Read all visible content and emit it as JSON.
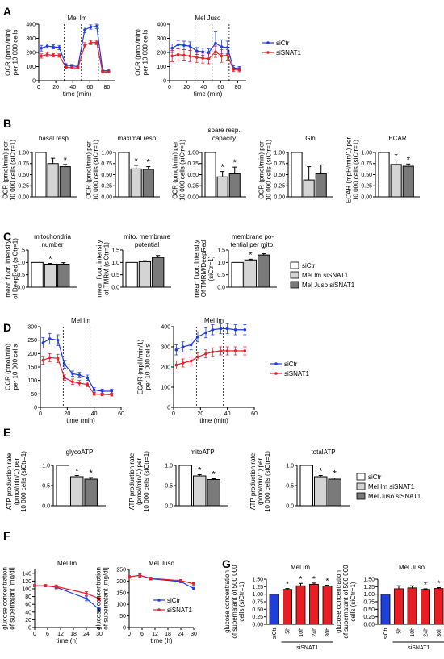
{
  "colors": {
    "blue": "#1f3de0",
    "red": "#e8202a",
    "bar_white": "#ffffff",
    "bar_light": "#d4d4d4",
    "bar_dark": "#7a7a7a",
    "g_blue": "#1e3fdc",
    "g_red": "#e81e24"
  },
  "panels": {
    "A": "A",
    "B": "B",
    "C": "C",
    "D": "D",
    "E": "E",
    "F": "F",
    "G": "G"
  },
  "legends": {
    "two": [
      "siCtr",
      "siSNAT1"
    ],
    "three": [
      "siCtr",
      "Mel Im siSNAT1",
      "Mel Juso siSNAT1"
    ]
  },
  "asterisk": "*",
  "chart_data": [
    {
      "id": "A1",
      "type": "line",
      "title": "Mel  Im",
      "xlabel": "time (min)",
      "ylabel": "OCR (pmol/min)\nper 10 000 cells",
      "xlim": [
        0,
        90
      ],
      "ylim": [
        0,
        400
      ],
      "xticks": [
        0,
        20,
        40,
        60,
        80
      ],
      "yticks": [
        0,
        100,
        200,
        300,
        400
      ],
      "vlines": [
        30,
        50,
        70
      ],
      "series": [
        {
          "name": "siCtr",
          "color": "blue",
          "x": [
            3,
            10,
            17,
            24,
            32,
            39,
            46,
            54,
            61,
            68,
            75,
            82
          ],
          "y": [
            230,
            245,
            240,
            235,
            110,
            105,
            100,
            360,
            380,
            385,
            70,
            70
          ],
          "err": [
            20,
            15,
            15,
            15,
            10,
            10,
            10,
            20,
            15,
            15,
            5,
            5
          ]
        },
        {
          "name": "siSNAT1",
          "color": "red",
          "x": [
            3,
            10,
            17,
            24,
            32,
            39,
            46,
            54,
            61,
            68,
            75,
            82
          ],
          "y": [
            175,
            185,
            180,
            178,
            95,
            92,
            90,
            250,
            270,
            270,
            60,
            62
          ],
          "err": [
            15,
            15,
            12,
            12,
            8,
            8,
            8,
            20,
            15,
            15,
            5,
            5
          ]
        }
      ]
    },
    {
      "id": "A2",
      "type": "line",
      "title": "Mel  Juso",
      "xlabel": "time (min)",
      "ylabel": "OCR (pmol/min)\nper 10 000 cells",
      "xlim": [
        0,
        90
      ],
      "ylim": [
        0,
        400
      ],
      "xticks": [
        0,
        20,
        40,
        60,
        80
      ],
      "yticks": [
        0,
        100,
        200,
        300,
        400
      ],
      "vlines": [
        30,
        50,
        70
      ],
      "series": [
        {
          "name": "siCtr",
          "color": "blue",
          "x": [
            3,
            10,
            17,
            24,
            32,
            39,
            46,
            54,
            61,
            68,
            75,
            82
          ],
          "y": [
            230,
            255,
            250,
            245,
            210,
            205,
            200,
            265,
            240,
            235,
            90,
            85
          ],
          "err": [
            30,
            30,
            30,
            30,
            25,
            25,
            25,
            80,
            50,
            45,
            15,
            15
          ]
        },
        {
          "name": "siSNAT1",
          "color": "red",
          "x": [
            3,
            10,
            17,
            24,
            32,
            39,
            46,
            54,
            61,
            68,
            75,
            82
          ],
          "y": [
            175,
            185,
            180,
            175,
            165,
            160,
            155,
            205,
            175,
            180,
            80,
            78
          ],
          "err": [
            40,
            40,
            40,
            40,
            35,
            35,
            35,
            40,
            45,
            40,
            15,
            15
          ]
        }
      ]
    },
    {
      "id": "B1",
      "type": "bar",
      "title": "basal resp.",
      "ylabel": "OCR (pmol/min) per\n10 000 cells (siCtr=1)",
      "ylim": [
        0,
        1.2
      ],
      "yticks": [
        "0.00",
        "0.25",
        "0.50",
        "0.75",
        "1.00"
      ],
      "values": [
        1.0,
        0.75,
        0.68
      ],
      "err": [
        0,
        0.12,
        0.05
      ],
      "stars": [
        false,
        false,
        true
      ]
    },
    {
      "id": "B2",
      "type": "bar",
      "title": "maximal resp.",
      "ylabel": "OCR (pmol/min) per\n10 000 cells (siCtr=1)",
      "ylim": [
        0,
        1.2
      ],
      "yticks": [
        "0.00",
        "0.25",
        "0.50",
        "0.75",
        "1.00"
      ],
      "values": [
        1.0,
        0.63,
        0.62
      ],
      "err": [
        0,
        0.08,
        0.06
      ],
      "stars": [
        false,
        true,
        true
      ]
    },
    {
      "id": "B3",
      "type": "bar",
      "title": "spare resp.\ncapacity",
      "ylabel": "OCR (pmol/min) per\n10 000 cells (siCtr=1)",
      "ylim": [
        0,
        1.2
      ],
      "yticks": [
        "0.00",
        "0.25",
        "0.50",
        "0.75",
        "1.00"
      ],
      "values": [
        1.0,
        0.45,
        0.52
      ],
      "err": [
        0,
        0.12,
        0.15
      ],
      "stars": [
        false,
        true,
        true
      ]
    },
    {
      "id": "B4",
      "type": "bar",
      "title": "Gln",
      "ylabel": "OCR (pmol/min) per\n10 000 cells (siCtr=1)",
      "ylim": [
        0,
        1.2
      ],
      "yticks": [
        "0.00",
        "0.25",
        "0.50",
        "0.75",
        "1.00"
      ],
      "values": [
        1.0,
        0.38,
        0.52
      ],
      "err": [
        0,
        0.3,
        0.2
      ],
      "stars": [
        false,
        false,
        false
      ]
    },
    {
      "id": "B5",
      "type": "bar",
      "title": "ECAR",
      "ylabel": "ECAR (mpH/min/1) per\n10 000 cells (siCtr=1)",
      "ylim": [
        0,
        1.2
      ],
      "yticks": [
        "0.00",
        "0.25",
        "0.50",
        "0.75",
        "1.00"
      ],
      "values": [
        1.0,
        0.73,
        0.69
      ],
      "err": [
        0,
        0.08,
        0.05
      ],
      "stars": [
        false,
        true,
        true
      ]
    },
    {
      "id": "C1",
      "type": "bar",
      "title": "mitochondria\nnumber",
      "ylabel": "mean fluor. intensity\nof DeepRed (siCtr=1)",
      "ylim": [
        0,
        1.5
      ],
      "yticks": [
        "0.0",
        "0.5",
        "1.0",
        "1.5"
      ],
      "values": [
        1.0,
        0.93,
        0.93
      ],
      "err": [
        0,
        0.03,
        0.06
      ],
      "stars": [
        false,
        true,
        false
      ]
    },
    {
      "id": "C2",
      "type": "bar",
      "title": "mito. membrane\npotential",
      "ylabel": "mean fluor. intensity\nof TMRM (siCtr=1)",
      "ylim": [
        0,
        1.5
      ],
      "yticks": [
        "0.0",
        "0.5",
        "1.0",
        "1.5"
      ],
      "values": [
        1.0,
        1.03,
        1.2
      ],
      "err": [
        0,
        0.04,
        0.08
      ],
      "stars": [
        false,
        false,
        false
      ]
    },
    {
      "id": "C3",
      "type": "bar",
      "title": "membrane po-\ntential per mito.",
      "ylabel": "mean fluor. Intensity\nOf TMRM/DeepRed\n(siCtr=1)",
      "ylim": [
        0,
        1.5
      ],
      "yticks": [
        "0.0",
        "0.5",
        "1.0",
        "1.5"
      ],
      "values": [
        1.0,
        1.1,
        1.3
      ],
      "err": [
        0,
        0.03,
        0.05
      ],
      "stars": [
        false,
        true,
        true
      ]
    },
    {
      "id": "D1",
      "type": "line",
      "title": "Mel  Im",
      "xlabel": "time (min)",
      "ylabel": "OCR (pmol/min)\nper 10 000 cells",
      "xlim": [
        0,
        60
      ],
      "ylim": [
        0,
        300
      ],
      "xticks": [
        0,
        20,
        40,
        60
      ],
      "yticks": [
        0,
        50,
        100,
        150,
        200,
        250,
        300
      ],
      "vlines": [
        17,
        37
      ],
      "series": [
        {
          "name": "siCtr",
          "color": "blue",
          "x": [
            2,
            7,
            13,
            18,
            24,
            29,
            35,
            40,
            46,
            53
          ],
          "y": [
            240,
            255,
            250,
            160,
            125,
            120,
            110,
            65,
            60,
            60
          ],
          "err": [
            20,
            20,
            20,
            15,
            10,
            10,
            10,
            8,
            8,
            8
          ]
        },
        {
          "name": "siSNAT1",
          "color": "red",
          "x": [
            2,
            7,
            13,
            18,
            24,
            29,
            35,
            40,
            46,
            53
          ],
          "y": [
            175,
            185,
            182,
            110,
            95,
            90,
            85,
            50,
            48,
            47
          ],
          "err": [
            15,
            15,
            15,
            10,
            10,
            10,
            8,
            5,
            5,
            5
          ]
        }
      ]
    },
    {
      "id": "D2",
      "type": "line",
      "title": "Mel  Im",
      "xlabel": "time (min)",
      "ylabel": "ECAR (mpH/min/1)\nper 10 000 cells",
      "xlim": [
        0,
        60
      ],
      "ylim": [
        0,
        400
      ],
      "xticks": [
        0,
        20,
        40,
        60
      ],
      "yticks": [
        0,
        100,
        200,
        300,
        400
      ],
      "vlines": [
        17,
        37
      ],
      "series": [
        {
          "name": "siCtr",
          "color": "blue",
          "x": [
            2,
            7,
            13,
            18,
            24,
            29,
            35,
            40,
            46,
            53
          ],
          "y": [
            285,
            300,
            310,
            350,
            370,
            385,
            390,
            390,
            385,
            385
          ],
          "err": [
            25,
            25,
            25,
            25,
            25,
            25,
            25,
            25,
            25,
            25
          ]
        },
        {
          "name": "siSNAT1",
          "color": "red",
          "x": [
            2,
            7,
            13,
            18,
            24,
            29,
            35,
            40,
            46,
            53
          ],
          "y": [
            210,
            220,
            230,
            250,
            265,
            275,
            280,
            280,
            280,
            280
          ],
          "err": [
            20,
            20,
            20,
            20,
            20,
            20,
            20,
            20,
            20,
            20
          ]
        }
      ]
    },
    {
      "id": "E1",
      "type": "bar",
      "title": "glycoATP",
      "ylabel": "ATP production rate\n(pmol/min/1) per\n10 000 cells (siCtr=1)",
      "ylim": [
        0,
        1.2
      ],
      "yticks": [
        "0.0",
        "0.5",
        "1.0"
      ],
      "values": [
        1.0,
        0.72,
        0.66
      ],
      "err": [
        0,
        0.03,
        0.04
      ],
      "stars": [
        false,
        true,
        true
      ]
    },
    {
      "id": "E2",
      "type": "bar",
      "title": "mitoATP",
      "ylabel": "ATP production rate\n(pmol/min/1) per\n10 000 cells (siCtr=1)",
      "ylim": [
        0,
        1.2
      ],
      "yticks": [
        "0.0",
        "0.5",
        "1.0"
      ],
      "values": [
        1.0,
        0.74,
        0.65
      ],
      "err": [
        0,
        0.03,
        0.02
      ],
      "stars": [
        false,
        true,
        true
      ]
    },
    {
      "id": "E3",
      "type": "bar",
      "title": "totalATP",
      "ylabel": "ATP production rate\n(pmol/min/1) per\n10 000 cells (siCtr=1)",
      "ylim": [
        0,
        1.2
      ],
      "yticks": [
        "0.0",
        "0.5",
        "1.0"
      ],
      "values": [
        1.0,
        0.72,
        0.66
      ],
      "err": [
        0,
        0.03,
        0.03
      ],
      "stars": [
        false,
        true,
        true
      ]
    },
    {
      "id": "F1",
      "type": "line",
      "title": "Mel Im",
      "xlabel": "time (h)",
      "ylabel": "glucose concentration\nof supernatant [mg/dl]",
      "xlim": [
        0,
        30
      ],
      "ylim": [
        0,
        150
      ],
      "xticks": [
        0,
        6,
        12,
        18,
        24,
        30
      ],
      "yticks": [
        0,
        20,
        40,
        60,
        80,
        100,
        120,
        140
      ],
      "series": [
        {
          "name": "siCtr",
          "color": "blue",
          "x": [
            0,
            5,
            10,
            24,
            30
          ],
          "y": [
            108,
            108,
            104,
            75,
            47
          ],
          "err": [
            3,
            3,
            4,
            6,
            5
          ]
        },
        {
          "name": "siSNAT1",
          "color": "red",
          "x": [
            0,
            5,
            10,
            24,
            30
          ],
          "y": [
            108,
            108,
            106,
            88,
            75
          ],
          "err": [
            3,
            3,
            4,
            5,
            5
          ]
        }
      ]
    },
    {
      "id": "F2",
      "type": "line",
      "title": "Mel Juso",
      "xlabel": "time (h)",
      "ylabel": "glucose concentration\nof supernatant [mg/dl]",
      "xlim": [
        0,
        30
      ],
      "ylim": [
        0,
        250
      ],
      "xticks": [
        0,
        6,
        12,
        18,
        24,
        30
      ],
      "yticks": [
        0,
        50,
        100,
        150,
        200,
        250
      ],
      "series": [
        {
          "name": "siCtr",
          "color": "blue",
          "x": [
            0,
            5,
            10,
            24,
            30
          ],
          "y": [
            218,
            225,
            210,
            198,
            168
          ],
          "err": [
            5,
            8,
            5,
            5,
            5
          ]
        },
        {
          "name": "siSNAT1",
          "color": "red",
          "x": [
            0,
            5,
            10,
            24,
            30
          ],
          "y": [
            218,
            225,
            212,
            202,
            188
          ],
          "err": [
            5,
            6,
            5,
            5,
            5
          ]
        }
      ]
    },
    {
      "id": "G1",
      "type": "bar",
      "title": "Mel Im",
      "ylabel": "glucose concentration\nof supernatant of 500 000\ncells (siCtr=1)",
      "ylim": [
        0,
        1.5
      ],
      "yticks": [
        "0.00",
        "0.25",
        "0.50",
        "0.75",
        "1.00",
        "1.25",
        "1.50"
      ],
      "categories": [
        "siCtr",
        "5h",
        "10h",
        "24h",
        "30h"
      ],
      "group_label": "siSNAT1",
      "values": [
        1.0,
        1.16,
        1.28,
        1.33,
        1.27
      ],
      "err": [
        0,
        0.03,
        0.08,
        0.04,
        0.03
      ],
      "stars": [
        false,
        true,
        true,
        true,
        true
      ]
    },
    {
      "id": "G2",
      "type": "bar",
      "title": "Mel Juso",
      "ylabel": "glucose concentration\nof supernatant of 500 000\ncells (siCtr=1)",
      "ylim": [
        0,
        1.5
      ],
      "yticks": [
        "0.00",
        "0.25",
        "0.50",
        "0.75",
        "1.00",
        "1.25",
        "1.50"
      ],
      "categories": [
        "siCtr",
        "5h",
        "10h",
        "24h",
        "30h"
      ],
      "group_label": "siSNAT1",
      "values": [
        1.0,
        1.18,
        1.21,
        1.16,
        1.19
      ],
      "err": [
        0,
        0.1,
        0.07,
        0.02,
        0.03
      ],
      "stars": [
        false,
        false,
        false,
        true,
        true
      ]
    }
  ]
}
